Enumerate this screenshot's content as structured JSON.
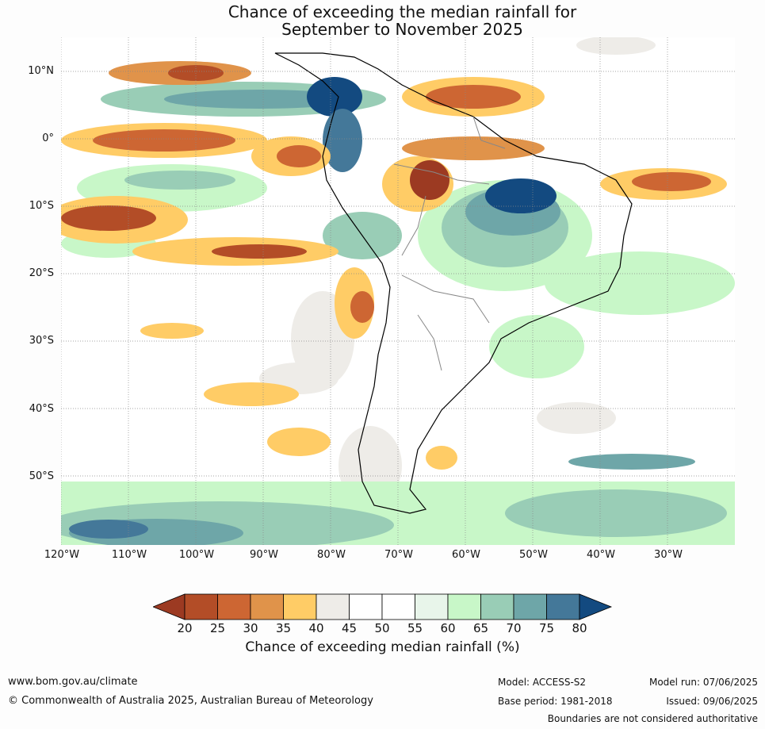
{
  "title": {
    "line1": "Chance of exceeding the median rainfall for",
    "line2": "September to November 2025"
  },
  "map": {
    "lat_labels": [
      "10°N",
      "0°",
      "10°S",
      "20°S",
      "30°S",
      "40°S",
      "50°S"
    ],
    "lon_labels": [
      "120°W",
      "110°W",
      "100°W",
      "90°W",
      "80°W",
      "70°W",
      "60°W",
      "50°W",
      "40°W",
      "30°W"
    ]
  },
  "colorbar": {
    "ticks": [
      "20",
      "25",
      "30",
      "35",
      "40",
      "45",
      "50",
      "55",
      "60",
      "65",
      "70",
      "75",
      "80"
    ],
    "colors": [
      "#9c3a22",
      "#b34d27",
      "#cd6633",
      "#e0934a",
      "#ffcc66",
      "#eeece8",
      "#ffffff",
      "#ffffff",
      "#e8f5ea",
      "#c8f7c8",
      "#99cdb6",
      "#6ea6a8",
      "#447899",
      "#134a80"
    ],
    "title": "Chance of exceeding median rainfall (%)"
  },
  "footer": {
    "website": "www.bom.gov.au/climate",
    "copyright": "© Commonwealth of Australia 2025, Australian Bureau of Meteorology",
    "model": "Model: ACCESS-S2",
    "base_period": "Base period: 1981-2018",
    "model_run": "Model run: 07/06/2025",
    "issued": "Issued: 09/06/2025",
    "boundaries_note": "Boundaries are not considered authoritative"
  }
}
